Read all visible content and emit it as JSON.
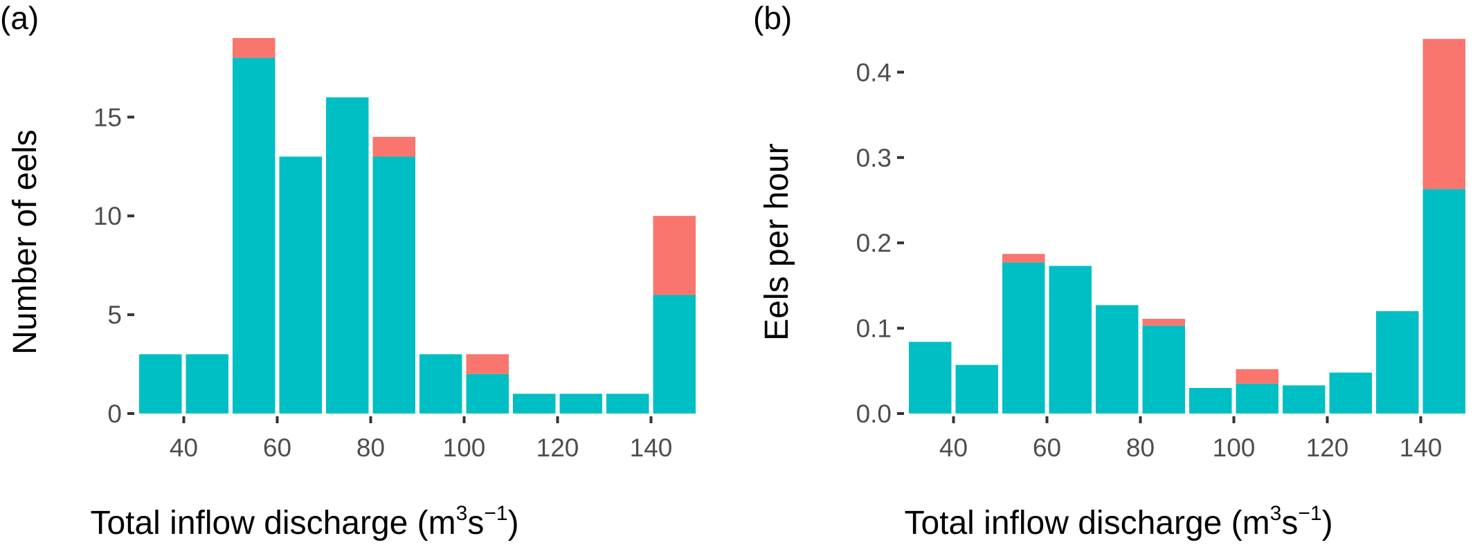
{
  "colors": {
    "bottom": "#00BFC4",
    "top": "#F8766D"
  },
  "chart_data": [
    {
      "type": "bar",
      "stacked": true,
      "panel_label": "(a)",
      "xlabel": "Total inflow discharge (m³s⁻¹)",
      "xlabel_parts": {
        "main": "Total inflow discharge (m",
        "sup1": "3",
        "mid": "s",
        "sup2": "−1",
        "end": ")"
      },
      "ylabel": "Number of eels",
      "xlim": [
        30,
        150
      ],
      "ylim": [
        0,
        19
      ],
      "x_ticks": [
        40,
        60,
        80,
        100,
        120,
        140
      ],
      "y_ticks": [
        0,
        5,
        10,
        15
      ],
      "bin_width": 10,
      "x": [
        35,
        45,
        55,
        65,
        75,
        85,
        95,
        105,
        115,
        125,
        135,
        145
      ],
      "series": [
        {
          "values": [
            3,
            3,
            18,
            13,
            16,
            13,
            3,
            2,
            1,
            1,
            1,
            6
          ]
        },
        {
          "values": [
            0,
            0,
            1,
            0,
            0,
            1,
            0,
            1,
            0,
            0,
            0,
            4
          ]
        }
      ]
    },
    {
      "type": "bar",
      "stacked": true,
      "panel_label": "(b)",
      "xlabel": "Total inflow discharge (m³s⁻¹)",
      "xlabel_parts": {
        "main": "Total inflow discharge (m",
        "sup1": "3",
        "mid": "s",
        "sup2": "−1",
        "end": ")"
      },
      "ylabel": "Eels per hour",
      "xlim": [
        30,
        150
      ],
      "ylim": [
        0,
        0.44
      ],
      "x_ticks": [
        40,
        60,
        80,
        100,
        120,
        140
      ],
      "y_ticks": [
        "0.0",
        "0.1",
        "0.2",
        "0.3",
        "0.4"
      ],
      "bin_width": 10,
      "x": [
        35,
        45,
        55,
        65,
        75,
        85,
        95,
        105,
        115,
        125,
        135,
        145
      ],
      "series": [
        {
          "values": [
            0.084,
            0.057,
            0.177,
            0.173,
            0.127,
            0.103,
            0.03,
            0.035,
            0.033,
            0.048,
            0.12,
            0.263
          ]
        },
        {
          "values": [
            0,
            0,
            0.01,
            0,
            0,
            0.008,
            0,
            0.017,
            0,
            0,
            0,
            0.176
          ]
        }
      ]
    }
  ]
}
